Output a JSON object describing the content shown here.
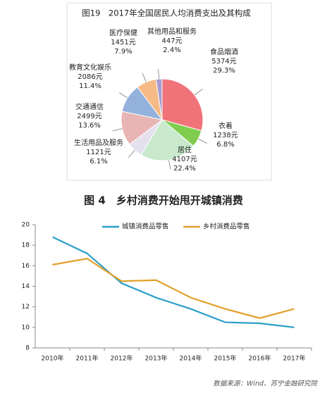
{
  "chart_data": [
    {
      "type": "pie",
      "title": "图19　2017年全国居民人均消费支出及其构成",
      "categories": [
        "食品烟酒",
        "衣着",
        "居住",
        "生活用品及服务",
        "交通通信",
        "教育文化娱乐",
        "医疗保健",
        "其他用品和服务"
      ],
      "values": [
        29.3,
        6.8,
        22.4,
        6.1,
        13.6,
        11.4,
        7.9,
        2.4
      ],
      "value_labels": [
        "29.3%",
        "6.8%",
        "22.4%",
        "6.1%",
        "13.6%",
        "11.4%",
        "7.9%",
        "2.4%"
      ],
      "amounts": [
        5374,
        1238,
        4107,
        1121,
        2499,
        2086,
        1451,
        447
      ],
      "amount_labels": [
        "5374元",
        "1238元",
        "4107元",
        "1121元",
        "2499元",
        "2086元",
        "1451元",
        "447元"
      ],
      "colors": [
        "#f0737a",
        "#7fcc4e",
        "#c8e9cc",
        "#e4e0ec",
        "#e8b4b4",
        "#93b1dc",
        "#f5ba86",
        "#a79bd2"
      ]
    },
    {
      "type": "line",
      "title": "图 4　乡村消费开始甩开城镇消费",
      "categories": [
        "2010年",
        "2011年",
        "2012年",
        "2013年",
        "2014年",
        "2015年",
        "2016年",
        "2017年"
      ],
      "series": [
        {
          "name": "城镇消费品零售",
          "color": "#2b9fc9",
          "values": [
            18.8,
            17.2,
            14.3,
            12.9,
            11.8,
            10.5,
            10.4,
            10.0
          ]
        },
        {
          "name": "乡村消费品零售",
          "color": "#e3a02a",
          "values": [
            16.1,
            16.7,
            14.5,
            14.6,
            12.9,
            11.8,
            10.9,
            11.8
          ]
        }
      ],
      "ylim": [
        8,
        20
      ],
      "yticks": [
        8,
        10,
        12,
        14,
        16,
        18,
        20
      ],
      "grid": false,
      "source": "数据来源：Wind、苏宁金融研究院"
    }
  ]
}
